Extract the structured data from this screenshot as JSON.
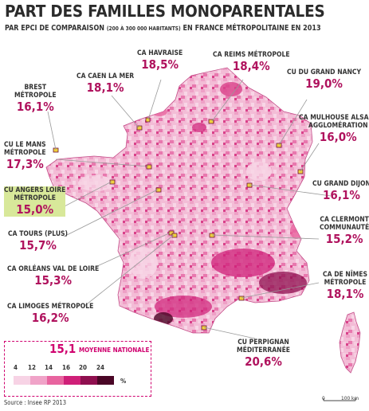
{
  "title": "PART DES FAMILLES MONOPARENTALES",
  "subtitle_main_1": "PAR EPCI DE COMPARAISON",
  "subtitle_small": "(200 À 300 000 HABITANTS)",
  "subtitle_main_2": "EN FRANCE MÉTROPOLITAINE EN 2013",
  "labels": {
    "brest": {
      "name_1": "BREST",
      "name_2": "MÉTROPOLE",
      "value": "16,1%"
    },
    "caen": {
      "name_1": "CA CAEN LA MER",
      "value": "18,1%"
    },
    "havraise": {
      "name_1": "CA HAVRAISE",
      "value": "18,5%"
    },
    "reims": {
      "name_1": "CA REIMS MÉTROPOLE",
      "value": "18,4%"
    },
    "nancy": {
      "name_1": "CU DU GRAND NANCY",
      "value": "19,0%"
    },
    "mulhouse": {
      "name_1": "CA MULHOUSE ALSACE",
      "name_2": "AGGLOMÉRATION",
      "value": "16,0%"
    },
    "lemans": {
      "name_1": "CU LE MANS",
      "name_2": "MÉTROPOLE",
      "value": "17,3%"
    },
    "angers": {
      "name_1": "CU ANGERS LOIRE",
      "name_2": "MÉTROPOLE",
      "value": "15,0%"
    },
    "dijon": {
      "name_1": "CU GRAND DIJON",
      "value": "16,1%"
    },
    "tours": {
      "name_1": "CA TOURS (PLUS)",
      "value": "15,7%"
    },
    "clermont": {
      "name_1": "CA CLERMONT",
      "name_2": "COMMUNAUTÉ",
      "value": "15,2%"
    },
    "orleans": {
      "name_1": "CA ORLÉANS VAL DE LOIRE",
      "value": "15,3%"
    },
    "nimes": {
      "name_1": "CA DE NÎMES",
      "name_2": "MÉTROPOLE",
      "value": "18,1%"
    },
    "limoges": {
      "name_1": "CA LIMOGES MÉTROPOLE",
      "value": "16,2%"
    },
    "perpignan": {
      "name_1": "CU PERPIGNAN",
      "name_2": "MÉDITERRANÉE",
      "value": "20,6%"
    }
  },
  "legend": {
    "average_value": "15,1",
    "average_label": "MOYENNE NATIONALE",
    "ticks": [
      "4",
      "12",
      "14",
      "16",
      "20",
      "24"
    ],
    "unit": "%",
    "colors": [
      "#f7d3e5",
      "#f0a3c8",
      "#e8649f",
      "#cf1f78",
      "#8f0f4f",
      "#4a0626"
    ]
  },
  "scale": {
    "zero": "0",
    "distance": "100 km"
  },
  "source": "Source : Insee RP 2013",
  "colors": {
    "accent": "#d0006f",
    "value_text": "#b0135e",
    "highlight": "#d8e89a",
    "map_base": "#f4c6dc"
  }
}
